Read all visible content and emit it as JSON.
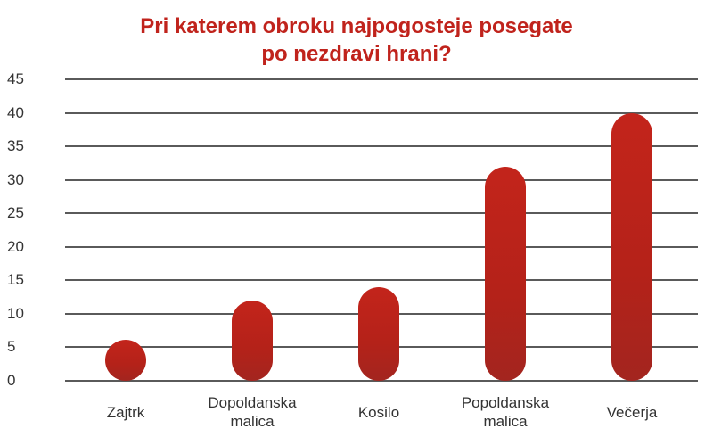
{
  "chart_data": {
    "type": "bar",
    "title": "Pri katerem obroku najpogosteje posegate po nezdravi hrani?",
    "title_lines": [
      "Pri katerem obroku najpogosteje posegate",
      "po nezdravi hrani?"
    ],
    "categories": [
      "Zajtrk",
      "Dopoldanska malica",
      "Kosilo",
      "Popoldanska malica",
      "Večerja"
    ],
    "category_lines": [
      [
        "Zajtrk"
      ],
      [
        "Dopoldanska",
        "malica"
      ],
      [
        "Kosilo"
      ],
      [
        "Popoldanska",
        "malica"
      ],
      [
        "Večerja"
      ]
    ],
    "values": [
      6,
      12,
      14,
      32,
      40
    ],
    "xlabel": "",
    "ylabel": "",
    "ylim": [
      0,
      45
    ],
    "yticks": [
      0,
      5,
      10,
      15,
      20,
      25,
      30,
      35,
      40,
      45
    ],
    "grid": true,
    "legend": null,
    "bar_color": "#bf231b",
    "title_color": "#c0231c"
  }
}
